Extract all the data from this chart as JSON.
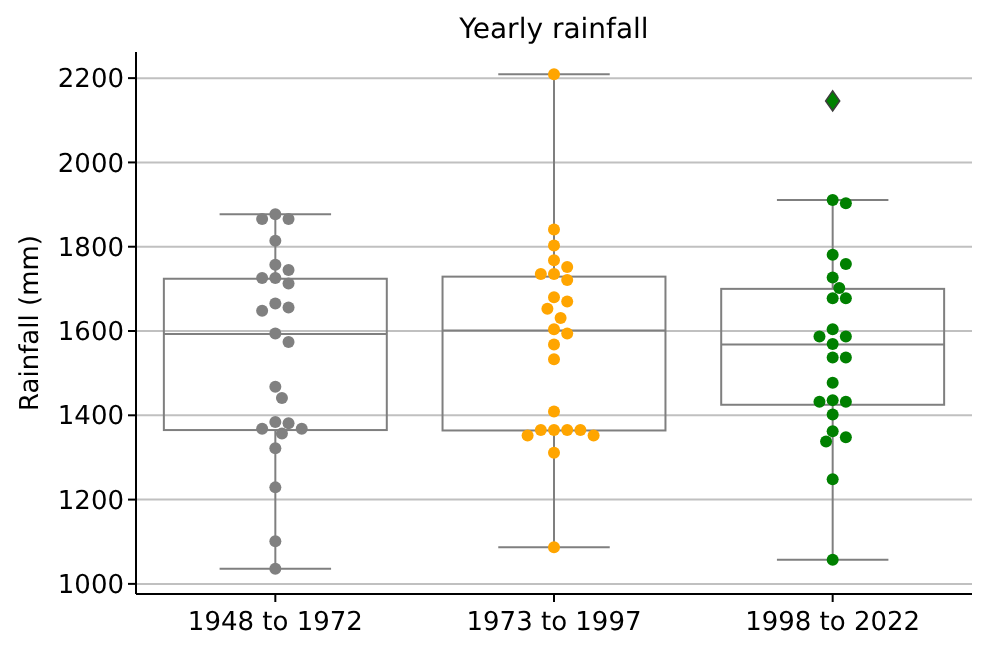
{
  "chart_data": {
    "type": "box",
    "title": "Yearly rainfall",
    "ylabel": "Rainfall (mm)",
    "categories": [
      "1948 to 1972",
      "1973 to 1997",
      "1998 to 2022"
    ],
    "boxes": [
      {
        "low": 1036,
        "q1": 1365,
        "median": 1593,
        "q3": 1724,
        "high": 1877
      },
      {
        "low": 1087,
        "q1": 1364,
        "median": 1601,
        "q3": 1729,
        "high": 2209
      },
      {
        "low": 1057,
        "q1": 1425,
        "median": 1568,
        "q3": 1700,
        "high": 1911,
        "outliers": [
          2146
        ]
      }
    ],
    "ylim": [
      976,
      2262
    ],
    "yticks": [
      1000,
      1200,
      1400,
      1600,
      1800,
      2000,
      2200
    ],
    "grid": "y",
    "series": [
      {
        "type": "scatter",
        "color": "#808080",
        "x": [
          "1948 to 1972",
          "1948 to 1972",
          "1948 to 1972",
          "1948 to 1972",
          "1948 to 1972",
          "1948 to 1972",
          "1948 to 1972",
          "1948 to 1972",
          "1948 to 1972",
          "1948 to 1972",
          "1948 to 1972",
          "1948 to 1972",
          "1948 to 1972",
          "1948 to 1972",
          "1948 to 1972",
          "1948 to 1972",
          "1948 to 1972",
          "1948 to 1972",
          "1948 to 1972",
          "1948 to 1972",
          "1948 to 1972",
          "1948 to 1972",
          "1948 to 1972",
          "1948 to 1972",
          "1948 to 1972"
        ],
        "values": [
          1877,
          1866,
          1866,
          1814,
          1757,
          1745,
          1726,
          1726,
          1713,
          1665,
          1656,
          1648,
          1594,
          1574,
          1468,
          1441,
          1384,
          1381,
          1368,
          1368,
          1357,
          1322,
          1229,
          1101,
          1036
        ]
      },
      {
        "type": "scatter",
        "color": "#ffa500",
        "x": [
          "1973 to 1997",
          "1973 to 1997",
          "1973 to 1997",
          "1973 to 1997",
          "1973 to 1997",
          "1973 to 1997",
          "1973 to 1997",
          "1973 to 1997",
          "1973 to 1997",
          "1973 to 1997",
          "1973 to 1997",
          "1973 to 1997",
          "1973 to 1997",
          "1973 to 1997",
          "1973 to 1997",
          "1973 to 1997",
          "1973 to 1997",
          "1973 to 1997",
          "1973 to 1997",
          "1973 to 1997",
          "1973 to 1997",
          "1973 to 1997",
          "1973 to 1997",
          "1973 to 1997",
          "1973 to 1997"
        ],
        "values": [
          2209,
          1841,
          1803,
          1768,
          1752,
          1735,
          1735,
          1721,
          1680,
          1670,
          1653,
          1631,
          1604,
          1594,
          1568,
          1533,
          1409,
          1365,
          1365,
          1365,
          1365,
          1352,
          1352,
          1311,
          1087
        ]
      },
      {
        "type": "scatter",
        "color": "#008000",
        "x": [
          "1998 to 2022",
          "1998 to 2022",
          "1998 to 2022",
          "1998 to 2022",
          "1998 to 2022",
          "1998 to 2022",
          "1998 to 2022",
          "1998 to 2022",
          "1998 to 2022",
          "1998 to 2022",
          "1998 to 2022",
          "1998 to 2022",
          "1998 to 2022",
          "1998 to 2022",
          "1998 to 2022",
          "1998 to 2022",
          "1998 to 2022",
          "1998 to 2022",
          "1998 to 2022",
          "1998 to 2022",
          "1998 to 2022",
          "1998 to 2022",
          "1998 to 2022",
          "1998 to 2022"
        ],
        "values": [
          1911,
          1903,
          1781,
          1759,
          1727,
          1702,
          1678,
          1678,
          1604,
          1587,
          1587,
          1569,
          1537,
          1537,
          1477,
          1436,
          1432,
          1432,
          1402,
          1362,
          1348,
          1338,
          1248,
          1057
        ]
      }
    ]
  }
}
